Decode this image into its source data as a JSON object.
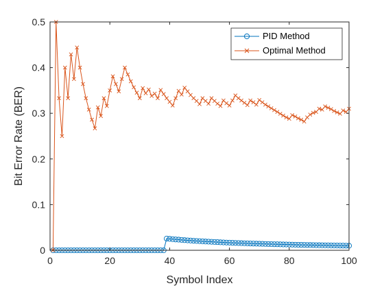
{
  "chart_data": {
    "type": "line",
    "title": "",
    "xlabel": "Symbol Index",
    "ylabel": "Bit Error Rate (BER)",
    "xlim": [
      0,
      100
    ],
    "ylim": [
      0,
      0.5
    ],
    "xticks": [
      "0",
      "20",
      "40",
      "60",
      "80",
      "100"
    ],
    "yticks": [
      "0",
      "0.1",
      "0.2",
      "0.3",
      "0.4",
      "0.5"
    ],
    "grid": false,
    "legend_position": "top-right",
    "series": [
      {
        "name": "PID Method",
        "color": "#0072BD",
        "marker": "circle",
        "x": [
          1,
          2,
          3,
          4,
          5,
          6,
          7,
          8,
          9,
          10,
          11,
          12,
          13,
          14,
          15,
          16,
          17,
          18,
          19,
          20,
          21,
          22,
          23,
          24,
          25,
          26,
          27,
          28,
          29,
          30,
          31,
          32,
          33,
          34,
          35,
          36,
          37,
          38,
          39,
          40,
          41,
          42,
          43,
          44,
          45,
          46,
          47,
          48,
          49,
          50,
          51,
          52,
          53,
          54,
          55,
          56,
          57,
          58,
          59,
          60,
          61,
          62,
          63,
          64,
          65,
          66,
          67,
          68,
          69,
          70,
          71,
          72,
          73,
          74,
          75,
          76,
          77,
          78,
          79,
          80,
          81,
          82,
          83,
          84,
          85,
          86,
          87,
          88,
          89,
          90,
          91,
          92,
          93,
          94,
          95,
          96,
          97,
          98,
          99,
          100
        ],
        "y": [
          0,
          0,
          0,
          0,
          0,
          0,
          0,
          0,
          0,
          0,
          0,
          0,
          0,
          0,
          0,
          0,
          0,
          0,
          0,
          0,
          0,
          0,
          0,
          0,
          0,
          0,
          0,
          0,
          0,
          0,
          0,
          0,
          0,
          0,
          0,
          0,
          0,
          0,
          0.0256,
          0.025,
          0.0244,
          0.0238,
          0.0233,
          0.0227,
          0.0222,
          0.0217,
          0.0213,
          0.0208,
          0.0204,
          0.02,
          0.0196,
          0.0192,
          0.0189,
          0.0185,
          0.0182,
          0.0179,
          0.0175,
          0.0172,
          0.0169,
          0.0167,
          0.0164,
          0.0161,
          0.0159,
          0.0156,
          0.0154,
          0.0152,
          0.0149,
          0.0147,
          0.0145,
          0.0143,
          0.0141,
          0.0139,
          0.0137,
          0.0135,
          0.0133,
          0.0132,
          0.013,
          0.0128,
          0.0127,
          0.0125,
          0.0123,
          0.0122,
          0.012,
          0.0119,
          0.0118,
          0.0116,
          0.0115,
          0.0114,
          0.0112,
          0.0111,
          0.011,
          0.0109,
          0.0108,
          0.0106,
          0.0105,
          0.0104,
          0.0103,
          0.0102,
          0.0101,
          0.01
        ]
      },
      {
        "name": "Optimal Method",
        "color": "#D95319",
        "marker": "x",
        "x": [
          1,
          2,
          3,
          4,
          5,
          6,
          7,
          8,
          9,
          10,
          11,
          12,
          13,
          14,
          15,
          16,
          17,
          18,
          19,
          20,
          21,
          22,
          23,
          24,
          25,
          26,
          27,
          28,
          29,
          30,
          31,
          32,
          33,
          34,
          35,
          36,
          37,
          38,
          39,
          40,
          41,
          42,
          43,
          44,
          45,
          46,
          47,
          48,
          49,
          50,
          51,
          52,
          53,
          54,
          55,
          56,
          57,
          58,
          59,
          60,
          61,
          62,
          63,
          64,
          65,
          66,
          67,
          68,
          69,
          70,
          71,
          72,
          73,
          74,
          75,
          76,
          77,
          78,
          79,
          80,
          81,
          82,
          83,
          84,
          85,
          86,
          87,
          88,
          89,
          90,
          91,
          92,
          93,
          94,
          95,
          96,
          97,
          98,
          99,
          100
        ],
        "y": [
          0,
          0.5,
          0.333,
          0.25,
          0.4,
          0.333,
          0.429,
          0.375,
          0.444,
          0.4,
          0.364,
          0.333,
          0.308,
          0.286,
          0.267,
          0.313,
          0.294,
          0.333,
          0.316,
          0.35,
          0.381,
          0.364,
          0.348,
          0.375,
          0.4,
          0.385,
          0.37,
          0.357,
          0.345,
          0.333,
          0.355,
          0.344,
          0.352,
          0.338,
          0.343,
          0.333,
          0.351,
          0.342,
          0.333,
          0.325,
          0.317,
          0.333,
          0.349,
          0.341,
          0.356,
          0.348,
          0.34,
          0.333,
          0.327,
          0.32,
          0.333,
          0.327,
          0.321,
          0.333,
          0.327,
          0.321,
          0.316,
          0.328,
          0.322,
          0.317,
          0.328,
          0.339,
          0.333,
          0.328,
          0.323,
          0.318,
          0.328,
          0.324,
          0.319,
          0.329,
          0.324,
          0.319,
          0.315,
          0.311,
          0.307,
          0.303,
          0.299,
          0.295,
          0.291,
          0.288,
          0.296,
          0.293,
          0.289,
          0.286,
          0.282,
          0.291,
          0.297,
          0.301,
          0.303,
          0.31,
          0.308,
          0.315,
          0.312,
          0.309,
          0.305,
          0.302,
          0.299,
          0.306,
          0.303,
          0.31
        ]
      }
    ]
  }
}
